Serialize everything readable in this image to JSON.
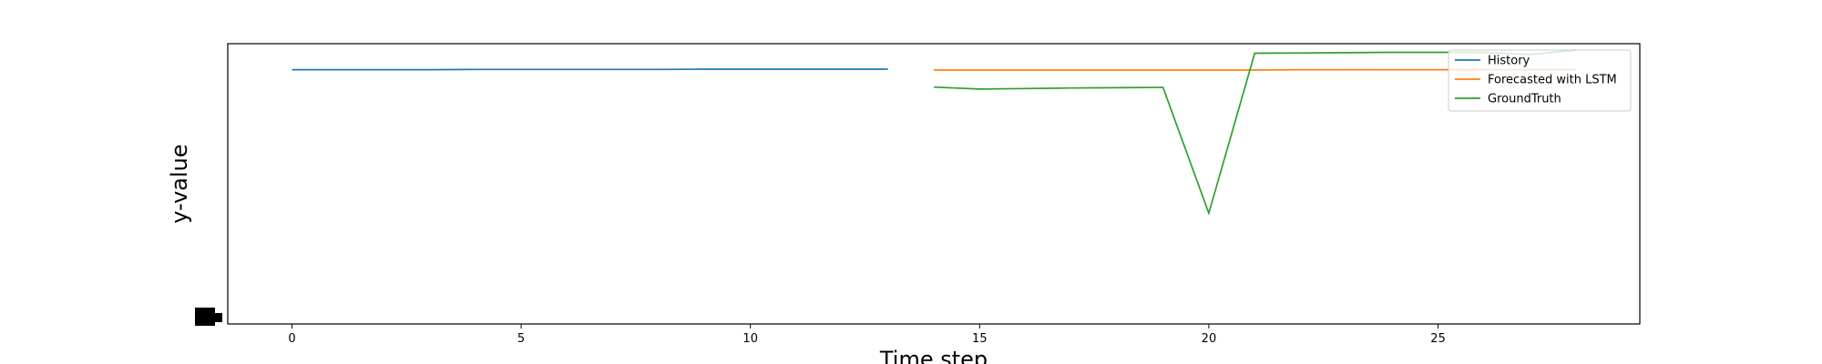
{
  "chart_data": {
    "type": "line",
    "title": "",
    "xlabel": "Time step",
    "ylabel": "y-value",
    "xlim": [
      -1.4,
      29.4
    ],
    "ylim": [
      0,
      1
    ],
    "xticks": [
      0,
      5,
      10,
      15,
      20,
      25
    ],
    "grid": false,
    "legend_position": "top-right",
    "series": [
      {
        "name": "History",
        "color": "#1f77b4",
        "x": [
          0,
          1,
          2,
          3,
          4,
          5,
          6,
          7,
          8,
          9,
          10,
          11,
          12,
          13
        ],
        "y": [
          0.907,
          0.907,
          0.907,
          0.907,
          0.908,
          0.908,
          0.908,
          0.908,
          0.908,
          0.909,
          0.909,
          0.909,
          0.909,
          0.909
        ]
      },
      {
        "name": "Forecasted with LSTM",
        "color": "#ff7f0e",
        "x": [
          14,
          15,
          16,
          17,
          18,
          19,
          20,
          21,
          22,
          23,
          24,
          25,
          26,
          27,
          28
        ],
        "y": [
          0.906,
          0.906,
          0.906,
          0.906,
          0.906,
          0.906,
          0.906,
          0.906,
          0.907,
          0.907,
          0.907,
          0.907,
          0.907,
          0.907,
          0.907
        ]
      },
      {
        "name": "GroundTruth",
        "color": "#2ca02c",
        "x": [
          14,
          15,
          16,
          17,
          18,
          19,
          20,
          21,
          22,
          23,
          24,
          25,
          26,
          27,
          28
        ],
        "y": [
          0.845,
          0.838,
          0.84,
          0.842,
          0.843,
          0.844,
          0.395,
          0.966,
          0.967,
          0.968,
          0.969,
          0.969,
          0.969,
          0.961,
          0.977
        ]
      }
    ]
  }
}
